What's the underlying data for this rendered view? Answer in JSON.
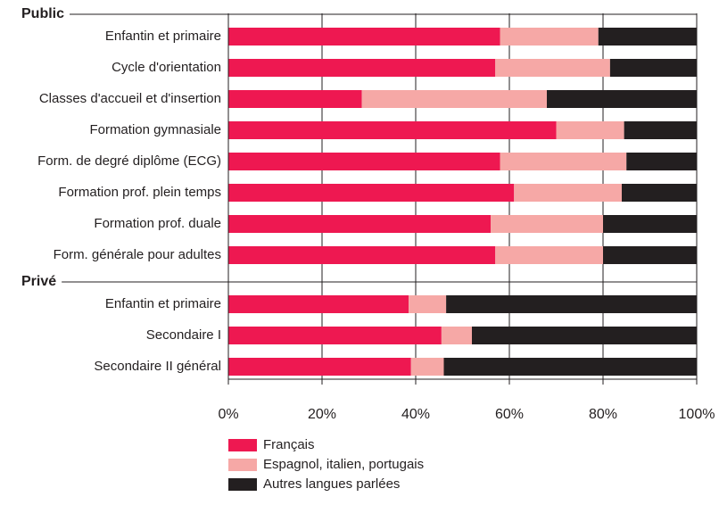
{
  "chart_data": {
    "type": "stacked-barh",
    "categories": [
      "Enfantin et primaire",
      "Cycle d'orientation",
      "Classes d'accueil et d'insertion",
      "Formation gymnasiale",
      "Form. de degré diplôme (ECG)",
      "Formation prof. plein temps",
      "Formation prof. duale",
      "Form. générale pour adultes",
      "Enfantin et primaire",
      "Secondaire I",
      "Secondaire II général"
    ],
    "group_labels": [
      "Public",
      null,
      null,
      null,
      null,
      null,
      null,
      null,
      "Privé",
      null,
      null
    ],
    "series": [
      {
        "name": "Français",
        "color": "#ee1851",
        "values": [
          58,
          57,
          28.5,
          70,
          58,
          61,
          56,
          57,
          38.5,
          45.5,
          39
        ]
      },
      {
        "name": "Espagnol, italien, portugais",
        "color": "#f6a8a6",
        "values": [
          21,
          24.5,
          39.5,
          14.5,
          27,
          23,
          24,
          23,
          8,
          6.5,
          7
        ]
      },
      {
        "name": "Autres langues parlées",
        "color": "#231f20",
        "values": [
          21,
          18.5,
          32,
          15.5,
          15,
          16,
          20,
          20,
          53.5,
          48,
          54
        ]
      }
    ],
    "xlim": [
      0,
      100
    ],
    "xticks": [
      {
        "value": 0,
        "label": "0%"
      },
      {
        "value": 20,
        "label": "20%"
      },
      {
        "value": 40,
        "label": "40%"
      },
      {
        "value": 60,
        "label": "60%"
      },
      {
        "value": 80,
        "label": "80%"
      },
      {
        "value": 100,
        "label": "100%"
      }
    ],
    "grid": true
  }
}
